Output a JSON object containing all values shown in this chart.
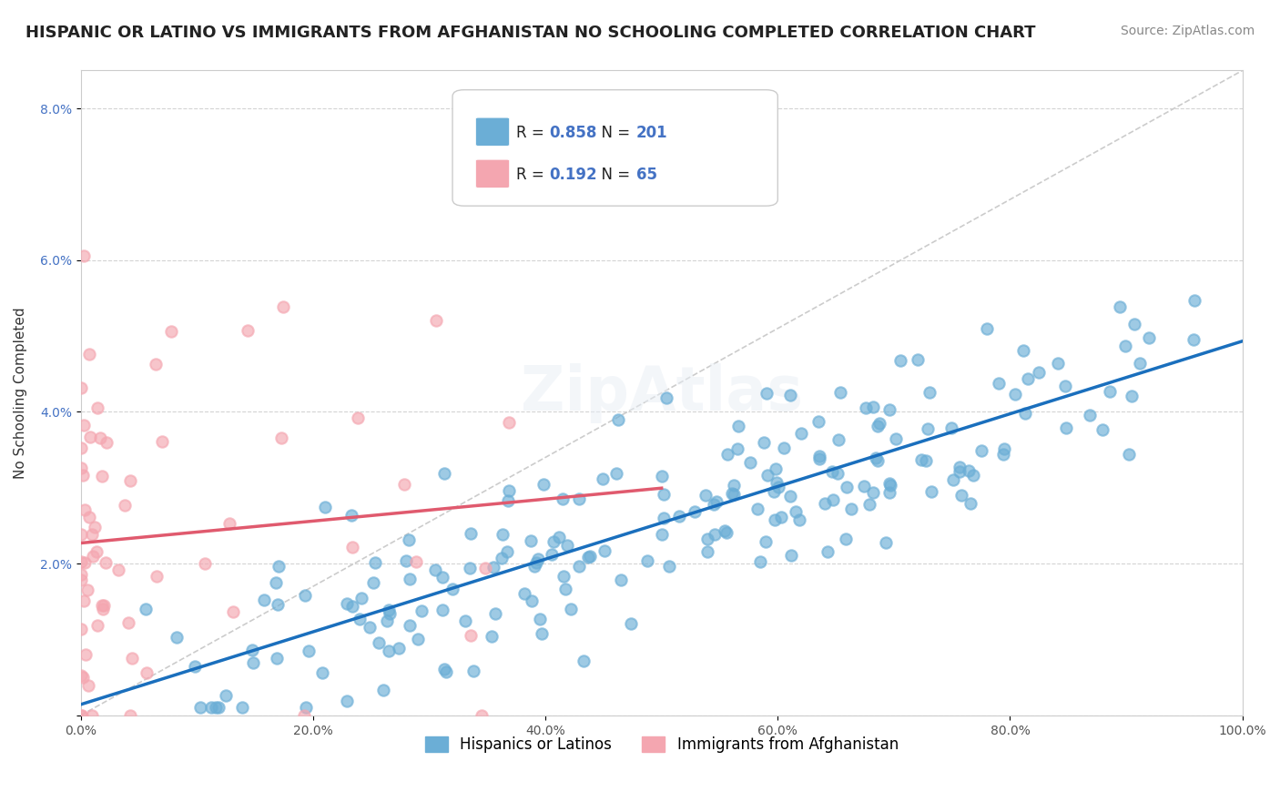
{
  "title": "HISPANIC OR LATINO VS IMMIGRANTS FROM AFGHANISTAN NO SCHOOLING COMPLETED CORRELATION CHART",
  "source": "Source: ZipAtlas.com",
  "xlabel": "",
  "ylabel": "No Schooling Completed",
  "xlim": [
    0,
    1.0
  ],
  "ylim": [
    0,
    0.085
  ],
  "xticks": [
    0.0,
    0.2,
    0.4,
    0.6,
    0.8,
    1.0
  ],
  "xticklabels": [
    "0.0%",
    "20.0%",
    "40.0%",
    "60.0%",
    "80.0%",
    "100.0%"
  ],
  "yticks": [
    0.0,
    0.02,
    0.04,
    0.06,
    0.08
  ],
  "yticklabels": [
    "",
    "2.0%",
    "4.0%",
    "6.0%",
    "8.0%"
  ],
  "blue_color": "#6baed6",
  "pink_color": "#f4a6b0",
  "blue_line_color": "#1a6fbd",
  "pink_line_color": "#e05a6e",
  "R_blue": 0.858,
  "N_blue": 201,
  "R_pink": 0.192,
  "N_pink": 65,
  "legend_label_blue": "Hispanics or Latinos",
  "legend_label_pink": "Immigrants from Afghanistan",
  "title_fontsize": 13,
  "axis_label_fontsize": 11,
  "tick_fontsize": 10,
  "legend_fontsize": 11,
  "source_fontsize": 10,
  "grid_color": "#d3d3d3",
  "blue_seed": 42,
  "pink_seed": 7
}
